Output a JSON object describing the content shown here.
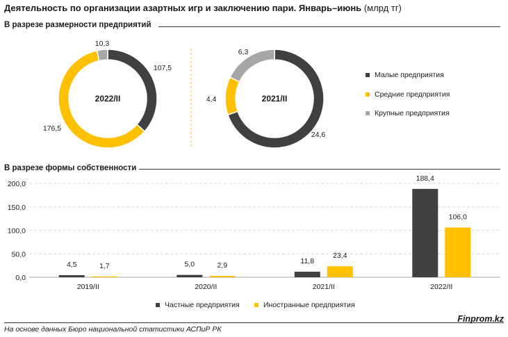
{
  "title": {
    "main": "Деятельность по организации азартных игр и заключению пари. Январь–июнь",
    "unit": "(млрд тг)"
  },
  "sections": {
    "size": "В разрезе размерности предприятий",
    "ownership": "В разрезе формы собственности"
  },
  "colors": {
    "small": "#404040",
    "medium": "#ffc000",
    "large": "#a6a6a6",
    "private": "#404040",
    "foreign": "#ffc000"
  },
  "legend_size": [
    "Малые предприятия",
    "Средние предприятия",
    "Крупные предприятия"
  ],
  "legend_ownership": [
    "Частные предприятия",
    "Иностранные предприятия"
  ],
  "chart_data": [
    {
      "type": "pie",
      "title": "2022/II",
      "categories": [
        "Малые предприятия",
        "Средние предприятия",
        "Крупные предприятия"
      ],
      "values": [
        107.5,
        176.5,
        10.3
      ],
      "labels": [
        "107,5",
        "176,5",
        "10,3"
      ]
    },
    {
      "type": "pie",
      "title": "2021/II",
      "categories": [
        "Малые предприятия",
        "Средние предприятия",
        "Крупные предприятия"
      ],
      "values": [
        24.6,
        4.4,
        6.3
      ],
      "labels": [
        "24,6",
        "4,4",
        "6,3"
      ]
    },
    {
      "type": "bar",
      "categories": [
        "2019/II",
        "2020/II",
        "2021/II",
        "2022/II"
      ],
      "series": [
        {
          "name": "Частные предприятия",
          "values": [
            4.5,
            5.0,
            11.8,
            188.4
          ],
          "labels": [
            "4,5",
            "5,0",
            "11,8",
            "188,4"
          ]
        },
        {
          "name": "Иностранные предприятия",
          "values": [
            1.7,
            2.9,
            23.4,
            106.0
          ],
          "labels": [
            "1,7",
            "2,9",
            "23,4",
            "106,0"
          ]
        }
      ],
      "ylim": [
        0,
        200
      ],
      "yticks": [
        "0,0",
        "50,0",
        "100,0",
        "150,0",
        "200,0"
      ],
      "grid": true,
      "legend": "bottom"
    }
  ],
  "footer": {
    "source": "На основе данных Бюро национальной статистики АСПиР РК",
    "brand": "Finprom.kz"
  }
}
